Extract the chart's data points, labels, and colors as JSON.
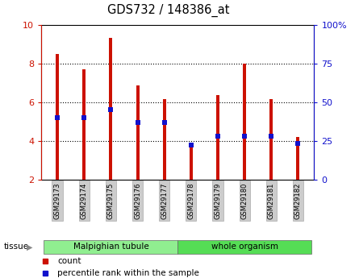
{
  "title": "GDS732 / 148386_at",
  "samples": [
    "GSM29173",
    "GSM29174",
    "GSM29175",
    "GSM29176",
    "GSM29177",
    "GSM29178",
    "GSM29179",
    "GSM29180",
    "GSM29181",
    "GSM29182"
  ],
  "count_values": [
    8.5,
    7.7,
    9.35,
    6.85,
    6.15,
    3.8,
    6.35,
    8.0,
    6.15,
    4.2
  ],
  "percentile_values_pct": [
    40,
    40,
    45,
    37,
    37,
    22,
    28,
    28,
    28,
    23
  ],
  "tissue_groups": [
    {
      "label": "Malpighian tubule",
      "start": 0,
      "end": 5,
      "color": "#90ee90"
    },
    {
      "label": "whole organism",
      "start": 5,
      "end": 10,
      "color": "#55dd55"
    }
  ],
  "ylim_left": [
    2,
    10
  ],
  "ylim_right": [
    0,
    100
  ],
  "left_ticks": [
    2,
    4,
    6,
    8,
    10
  ],
  "right_ticks": [
    0,
    25,
    50,
    75,
    100
  ],
  "bar_color": "#cc1100",
  "marker_color": "#1111cc",
  "grid_color": "#000000",
  "label_bg_color": "#cccccc",
  "legend_count_label": "count",
  "legend_percentile_label": "percentile rank within the sample"
}
